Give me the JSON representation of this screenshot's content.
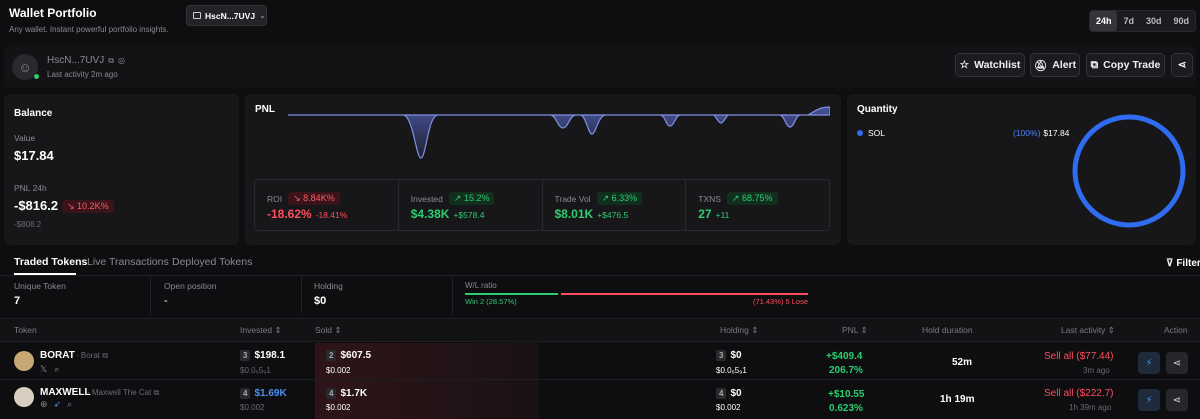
{
  "header": {
    "title": "Wallet Portfolio",
    "subtitle": "Any wallet. Instant powerful portfolio insights.",
    "wallet_selector": "HscN...7UVJ",
    "timeframes": [
      "24h",
      "7d",
      "30d",
      "90d"
    ],
    "active_timeframe": "24h"
  },
  "profile": {
    "address": "HscN...7UVJ",
    "last_activity": "Last activity 2m ago",
    "buttons": {
      "watchlist": "Watchlist",
      "alert": "Alert",
      "copy_trade": "Copy Trade"
    }
  },
  "balance": {
    "title": "Balance",
    "value_label": "Value",
    "value": "$17.84",
    "pnl_label": "PNL 24h",
    "pnl_value": "-$816.2",
    "pnl_pct": "10.2K%",
    "pnl_sub": "-$808.2"
  },
  "pnl_card": {
    "title": "PNL",
    "stats": [
      {
        "label": "ROI",
        "pill": "8.84K%",
        "pill_color": "red",
        "value": "-18.62%",
        "delta": "-18.41%",
        "value_color": "red"
      },
      {
        "label": "Invested",
        "pill": "15.2%",
        "pill_color": "green",
        "value": "$4.38K",
        "delta": "+$578.4",
        "value_color": "green"
      },
      {
        "label": "Trade Vol",
        "pill": "6.33%",
        "pill_color": "green",
        "value": "$8.01K",
        "delta": "+$476.5",
        "value_color": "green"
      },
      {
        "label": "TXNS",
        "pill": "68.75%",
        "pill_color": "green",
        "value": "27",
        "delta": "+11",
        "value_color": "green"
      }
    ]
  },
  "quantity": {
    "title": "Quantity",
    "token": "SOL",
    "pct": "(100%)",
    "value": "$17.84",
    "color": "#2f6cf0"
  },
  "tabs": [
    "Traded Tokens",
    "Live Transactions",
    "Deployed Tokens"
  ],
  "filter_label": "Filter",
  "summary": {
    "unique_label": "Unique Token",
    "unique_value": "7",
    "open_label": "Open position",
    "open_value": "-",
    "holding_label": "Holding",
    "holding_value": "$0",
    "wl_label": "W/L ratio",
    "win_text": "Win 2 (28.57%)",
    "lose_text": "(71.43%) 5 Lose",
    "win_fraction": 0.2857
  },
  "columns": {
    "token": "Token",
    "invested": "Invested",
    "sold": "Sold",
    "holding": "Holding",
    "pnl": "PNL",
    "hold_duration": "Hold duration",
    "last_activity": "Last activity",
    "action": "Action"
  },
  "rows": [
    {
      "symbol": "BORAT",
      "name": "Borat",
      "inv_count": "3",
      "invested": "$198.1",
      "inv_price": "$0.0₆5₉1",
      "sold_count": "2",
      "sold": "$607.5",
      "sold_price": "$0.002",
      "hold_count": "3",
      "holding": "$0",
      "hold_price": "$0.0₆5₉1",
      "pnl": "+$409.4",
      "pnl_pct": "206.7%",
      "duration": "52m",
      "last_action": "Sell all ($77.44)",
      "last_time": "3m ago"
    },
    {
      "symbol": "MAXWELL",
      "name": "Maxwell The Cat",
      "inv_count": "4",
      "invested": "$1.69K",
      "inv_price": "$0.002",
      "sold_count": "4",
      "sold": "$1.7K",
      "sold_price": "$0.002",
      "hold_count": "4",
      "holding": "$0",
      "hold_price": "$0.002",
      "pnl": "+$10.55",
      "pnl_pct": "0.623%",
      "duration": "1h 19m",
      "last_action": "Sell all ($222.7)",
      "last_time": "1h 39m ago"
    }
  ]
}
